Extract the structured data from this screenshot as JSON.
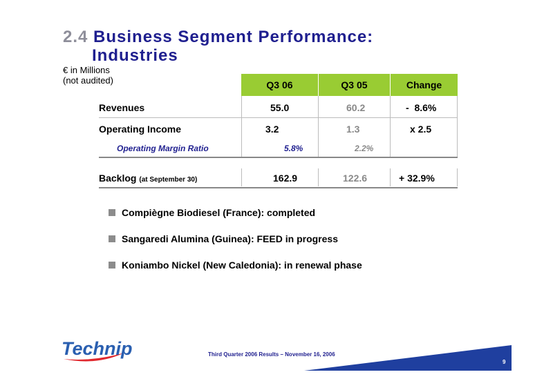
{
  "title": {
    "number": "2.4",
    "line1": "Business Segment Performance:",
    "line2": "Industries"
  },
  "subtitle": {
    "line1": "€ in Millions",
    "line2": "(not audited)"
  },
  "table": {
    "headers": [
      "Q3 06",
      "Q3 05",
      "Change"
    ],
    "rows": [
      {
        "label": "Revenues",
        "q306": "55.0",
        "q305": "60.2",
        "change": "-  8.6%"
      },
      {
        "label": "Operating Income",
        "q306": "3.2",
        "q305": "1.3",
        "change": "x 2.5"
      },
      {
        "label": "Operating Margin Ratio",
        "q306": "5.8%",
        "q305": "2.2%",
        "change": ""
      }
    ],
    "backlog": {
      "label": "Backlog",
      "sublabel": "(at September 30)",
      "q306": "162.9",
      "q305": "122.6",
      "change": "+ 32.9%"
    }
  },
  "bullets": [
    "Compiègne Biodiesel (France): completed",
    "Sangaredi Alumina (Guinea): FEED in progress",
    "Koniambo Nickel (New Caledonia): in renewal phase"
  ],
  "footer": {
    "text": "Third Quarter 2006 Results – November 16, 2006",
    "page": "9"
  },
  "logo": {
    "text": "Technip"
  },
  "colors": {
    "title": "#1f1f8f",
    "header_green": "#99cc33",
    "logo_blue": "#2a5fb0",
    "logo_red": "#e0282e"
  }
}
